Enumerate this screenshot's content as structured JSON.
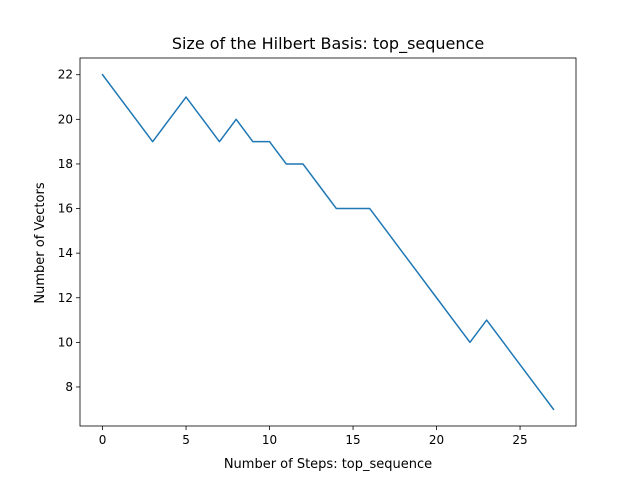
{
  "chart_data": {
    "type": "line",
    "title": "Size of the Hilbert Basis: top_sequence",
    "xlabel": "Number of Steps: top_sequence",
    "ylabel": "Number of Vectors",
    "xlim": [
      -1.35,
      28.35
    ],
    "ylim": [
      6.25,
      22.75
    ],
    "xticks": [
      0,
      5,
      10,
      15,
      20,
      25
    ],
    "yticks": [
      8,
      10,
      12,
      14,
      16,
      18,
      20,
      22
    ],
    "grid": false,
    "series": [
      {
        "color": "#1f77b4",
        "x": [
          0,
          1,
          2,
          3,
          4,
          5,
          6,
          7,
          8,
          9,
          10,
          11,
          12,
          13,
          14,
          15,
          16,
          17,
          18,
          19,
          20,
          21,
          22,
          23,
          24,
          25,
          26,
          27
        ],
        "y": [
          22,
          21,
          20,
          19,
          20,
          21,
          20,
          19,
          20,
          19,
          19,
          18,
          18,
          17,
          16,
          16,
          16,
          15,
          14,
          13,
          12,
          11,
          10,
          11,
          10,
          9,
          8,
          7
        ]
      }
    ]
  }
}
